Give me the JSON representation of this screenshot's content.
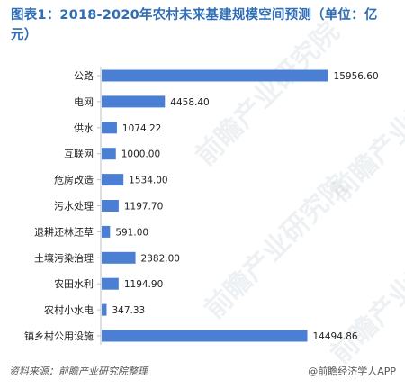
{
  "title": {
    "line1": "图表1：2018-2020年农村未来基建规模空间预测（单位：亿",
    "line2": "元）"
  },
  "chart_data": {
    "type": "bar",
    "orientation": "horizontal",
    "title": "图表1：2018-2020年农村未来基建规模空间预测（单位：亿元）",
    "xlabel": "",
    "ylabel": "",
    "xlim": [
      0,
      17000
    ],
    "grid": false,
    "bar_color": "#4a7fd4",
    "categories": [
      "公路",
      "电网",
      "供水",
      "互联网",
      "危房改造",
      "污水处理",
      "退耕还林还草",
      "土壤污染治理",
      "农田水利",
      "农村小水电",
      "镇乡村公用设施"
    ],
    "values": [
      15956.6,
      4458.4,
      1074.22,
      1000.0,
      1534.0,
      1197.7,
      591.0,
      2382.0,
      1194.9,
      347.33,
      14494.86
    ],
    "value_labels": [
      "15956.60",
      "4458.40",
      "1074.22",
      "1000.00",
      "1534.00",
      "1197.70",
      "591.00",
      "2382.00",
      "1194.90",
      "347.33",
      "14494.86"
    ]
  },
  "footer": {
    "source": "资料来源：前瞻产业研究院整理",
    "brand": "@前瞻经济学人APP"
  },
  "watermark": {
    "text": "前瞻产业研究院"
  }
}
